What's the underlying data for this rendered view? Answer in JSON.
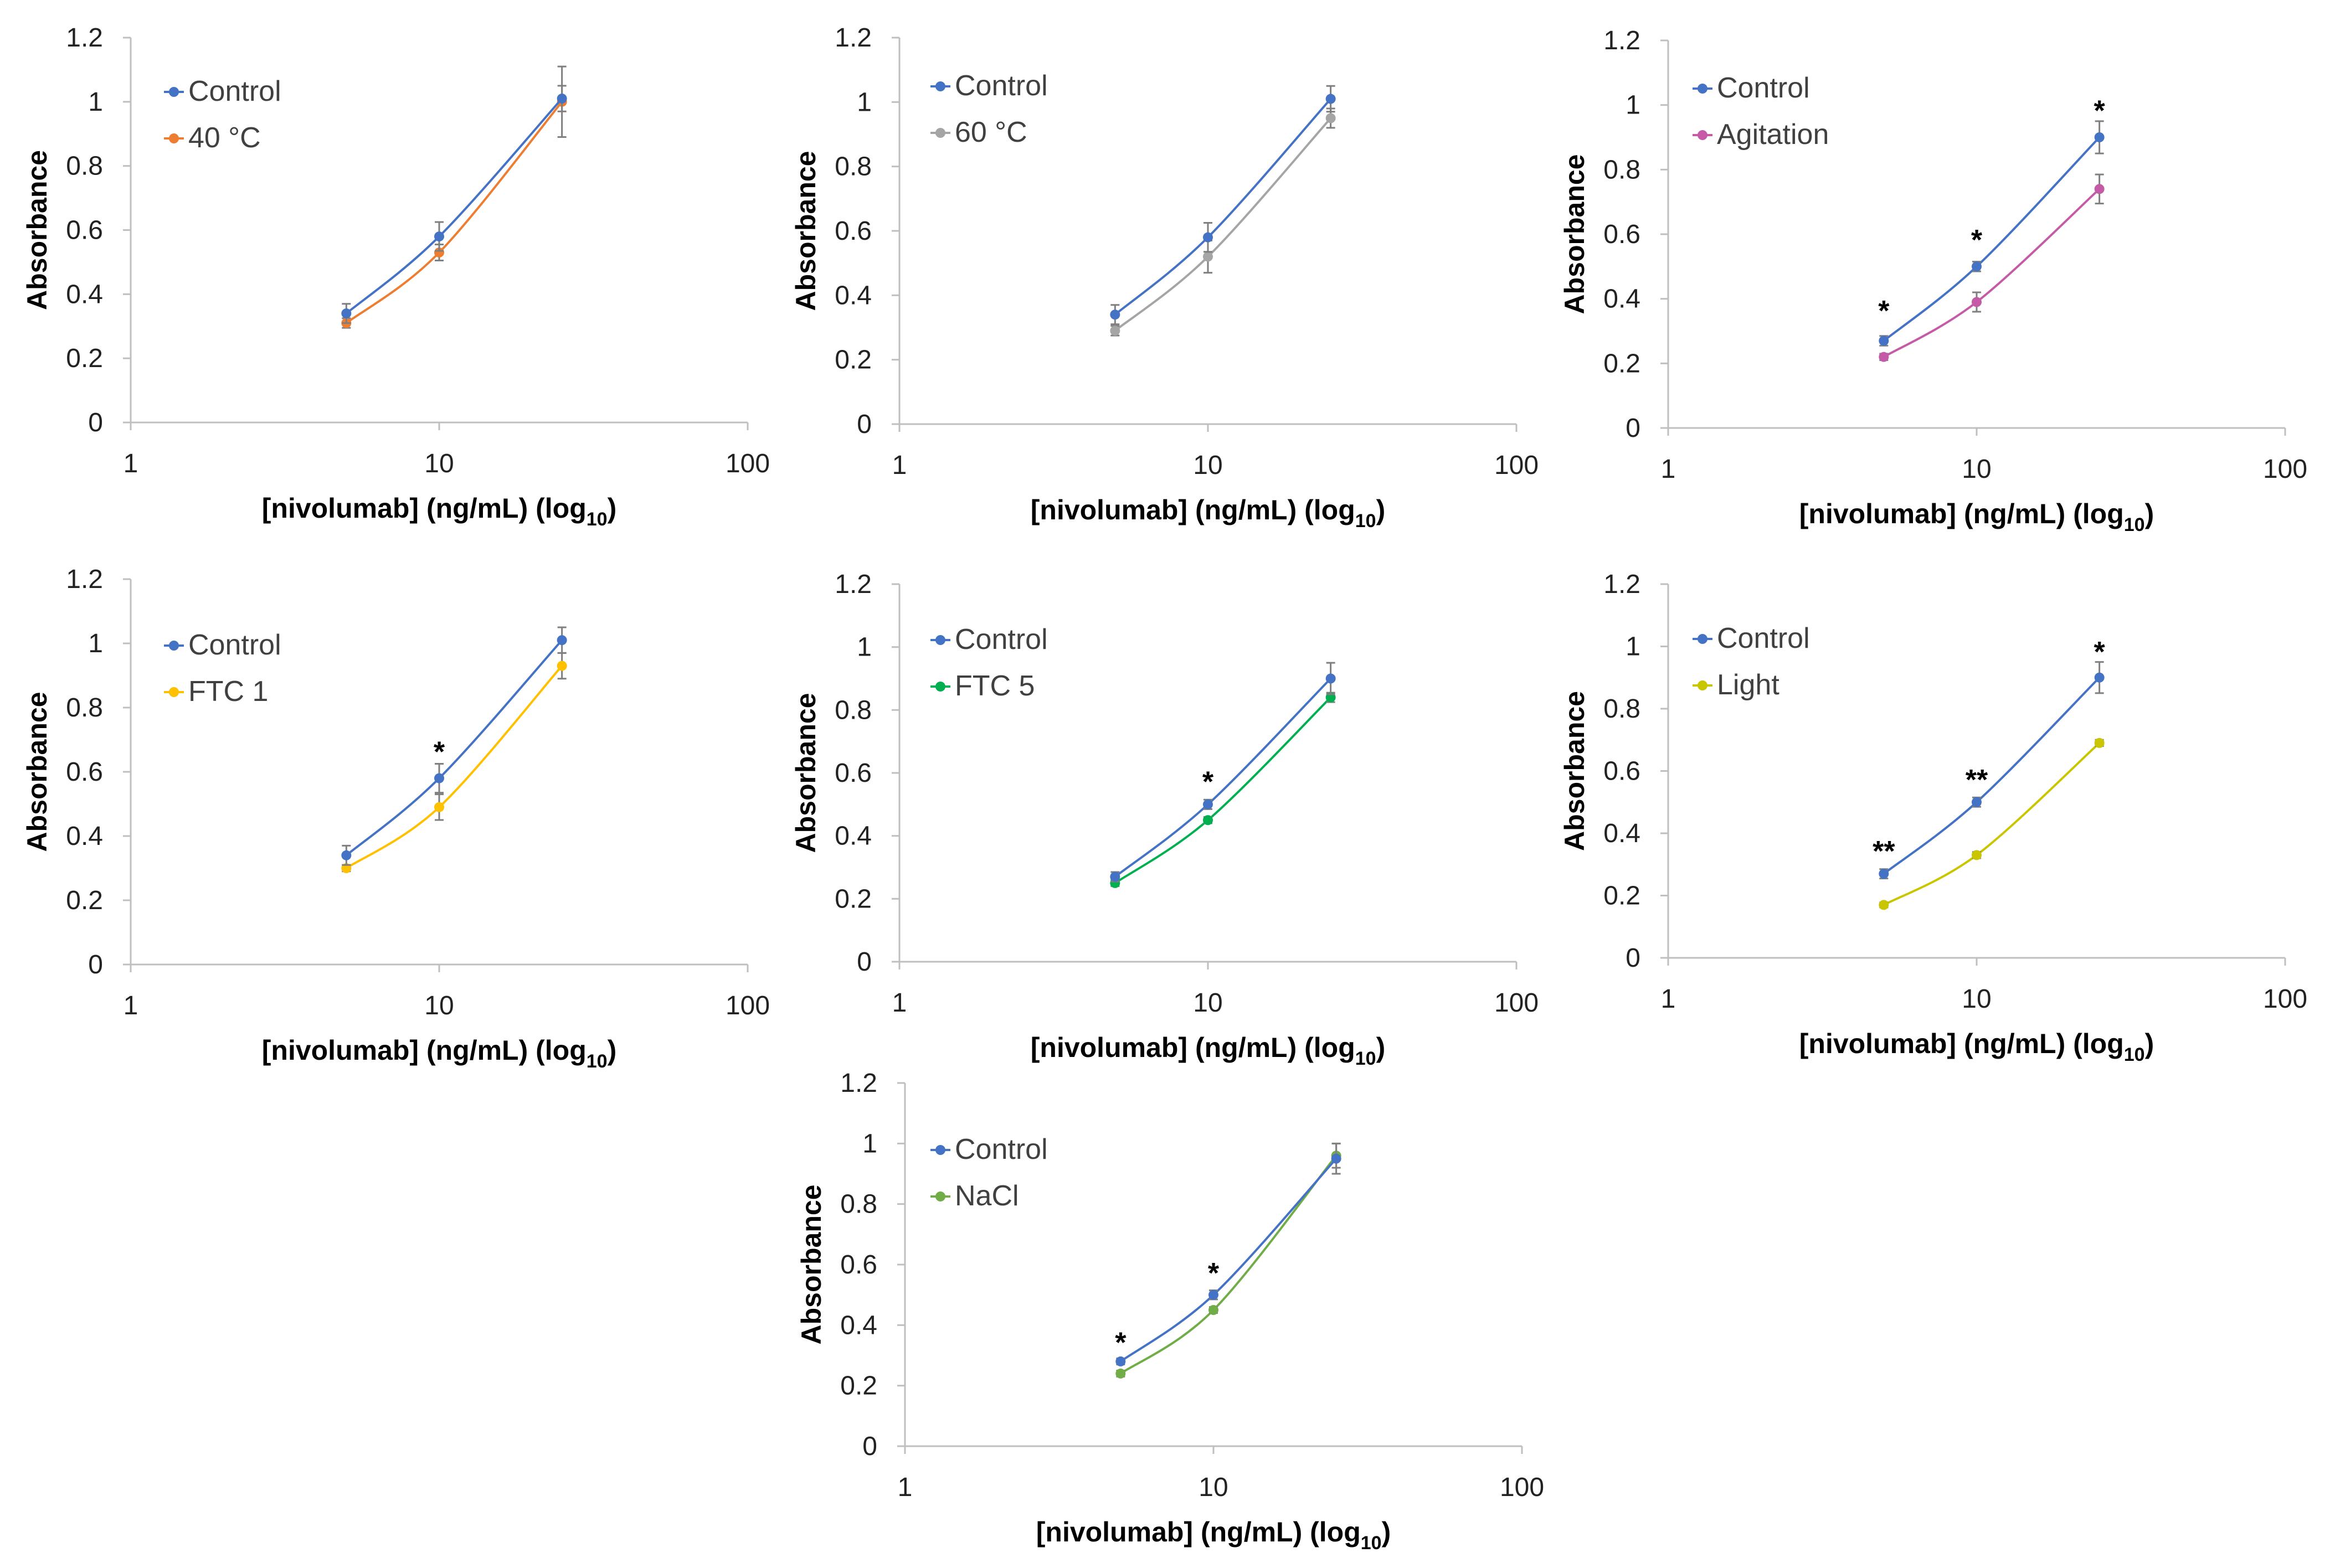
{
  "chart_data": [
    {
      "type": "line",
      "xscale": "log",
      "xlim": [
        1,
        100
      ],
      "ylim": [
        0,
        1.2
      ],
      "xticks": [
        "1",
        "10",
        "100"
      ],
      "yticks": [
        "0",
        "0.2",
        "0.4",
        "0.6",
        "0.8",
        "1",
        "1.2"
      ],
      "xlabel": "[nivolumab] (ng/mL) (log",
      "xlabel_sub": "10",
      "xlabel_end": ")",
      "ylabel": "Absorbance",
      "x": [
        5,
        10,
        25
      ],
      "series": [
        {
          "name": "Control",
          "color": "#4472C4",
          "values": [
            0.34,
            0.58,
            1.01
          ],
          "errors": [
            0.03,
            0.045,
            0.04
          ]
        },
        {
          "name": "40 °C",
          "color": "#ED7D31",
          "values": [
            0.31,
            0.53,
            1.0
          ],
          "errors": [
            0.015,
            0.025,
            0.11
          ]
        }
      ],
      "significance": []
    },
    {
      "type": "line",
      "xscale": "log",
      "xlim": [
        1,
        100
      ],
      "ylim": [
        0,
        1.2
      ],
      "xticks": [
        "1",
        "10",
        "100"
      ],
      "yticks": [
        "0",
        "0.2",
        "0.4",
        "0.6",
        "0.8",
        "1",
        "1.2"
      ],
      "xlabel": "[nivolumab] (ng/mL) (log",
      "xlabel_sub": "10",
      "xlabel_end": ")",
      "ylabel": "Absorbance",
      "x": [
        5,
        10,
        25
      ],
      "series": [
        {
          "name": "Control",
          "color": "#4472C4",
          "values": [
            0.34,
            0.58,
            1.01
          ],
          "errors": [
            0.03,
            0.045,
            0.04
          ]
        },
        {
          "name": "60 °C",
          "color": "#A5A5A5",
          "values": [
            0.29,
            0.52,
            0.95
          ],
          "errors": [
            0.015,
            0.05,
            0.03
          ]
        }
      ],
      "significance": []
    },
    {
      "type": "line",
      "xscale": "log",
      "xlim": [
        1,
        100
      ],
      "ylim": [
        0,
        1.2
      ],
      "xticks": [
        "1",
        "10",
        "100"
      ],
      "yticks": [
        "0",
        "0.2",
        "0.4",
        "0.6",
        "0.8",
        "1",
        "1.2"
      ],
      "xlabel": "[nivolumab] (ng/mL) (log",
      "xlabel_sub": "10",
      "xlabel_end": ")",
      "ylabel": "Absorbance",
      "x": [
        5,
        10,
        25
      ],
      "series": [
        {
          "name": "Control",
          "color": "#4472C4",
          "values": [
            0.27,
            0.5,
            0.9
          ],
          "errors": [
            0.015,
            0.015,
            0.05
          ]
        },
        {
          "name": "Agitation",
          "color": "#C55BA6",
          "values": [
            0.22,
            0.39,
            0.74
          ],
          "errors": [
            0.01,
            0.03,
            0.045
          ]
        }
      ],
      "significance": [
        {
          "x": 5,
          "y": 0.37,
          "text": "*"
        },
        {
          "x": 10,
          "y": 0.59,
          "text": "*"
        },
        {
          "x": 25,
          "y": 0.99,
          "text": "*"
        }
      ]
    },
    {
      "type": "line",
      "xscale": "log",
      "xlim": [
        1,
        100
      ],
      "ylim": [
        0,
        1.2
      ],
      "xticks": [
        "1",
        "10",
        "100"
      ],
      "yticks": [
        "0",
        "0.2",
        "0.4",
        "0.6",
        "0.8",
        "1",
        "1.2"
      ],
      "xlabel": "[nivolumab] (ng/mL) (log",
      "xlabel_sub": "10",
      "xlabel_end": ")",
      "ylabel": "Absorbance",
      "x": [
        5,
        10,
        25
      ],
      "series": [
        {
          "name": "Control",
          "color": "#4472C4",
          "values": [
            0.34,
            0.58,
            1.01
          ],
          "errors": [
            0.03,
            0.045,
            0.04
          ]
        },
        {
          "name": "FTC 1",
          "color": "#FFC000",
          "values": [
            0.3,
            0.49,
            0.93
          ],
          "errors": [
            0.01,
            0.04,
            0.04
          ]
        }
      ],
      "significance": [
        {
          "x": 10,
          "y": 0.67,
          "text": "*"
        }
      ]
    },
    {
      "type": "line",
      "xscale": "log",
      "xlim": [
        1,
        100
      ],
      "ylim": [
        0,
        1.2
      ],
      "xticks": [
        "1",
        "10",
        "100"
      ],
      "yticks": [
        "0",
        "0.2",
        "0.4",
        "0.6",
        "0.8",
        "1",
        "1.2"
      ],
      "xlabel": "[nivolumab] (ng/mL) (log",
      "xlabel_sub": "10",
      "xlabel_end": ")",
      "ylabel": "Absorbance",
      "x": [
        5,
        10,
        25
      ],
      "series": [
        {
          "name": "Control",
          "color": "#4472C4",
          "values": [
            0.27,
            0.5,
            0.9
          ],
          "errors": [
            0.015,
            0.015,
            0.05
          ]
        },
        {
          "name": "FTC 5",
          "color": "#00B050",
          "values": [
            0.25,
            0.45,
            0.84
          ],
          "errors": [
            0.01,
            0.01,
            0.015
          ]
        }
      ],
      "significance": [
        {
          "x": 10,
          "y": 0.58,
          "text": "*"
        }
      ]
    },
    {
      "type": "line",
      "xscale": "log",
      "xlim": [
        1,
        100
      ],
      "ylim": [
        0,
        1.2
      ],
      "xticks": [
        "1",
        "10",
        "100"
      ],
      "yticks": [
        "0",
        "0.2",
        "0.4",
        "0.6",
        "0.8",
        "1",
        "1.2"
      ],
      "xlabel": "[nivolumab] (ng/mL) (log",
      "xlabel_sub": "10",
      "xlabel_end": ")",
      "ylabel": "Absorbance",
      "x": [
        5,
        10,
        25
      ],
      "series": [
        {
          "name": "Control",
          "color": "#4472C4",
          "values": [
            0.27,
            0.5,
            0.9
          ],
          "errors": [
            0.015,
            0.015,
            0.05
          ]
        },
        {
          "name": "Light",
          "color": "#C9C600",
          "values": [
            0.17,
            0.33,
            0.69
          ],
          "errors": [
            0.008,
            0.01,
            0.01
          ]
        }
      ],
      "significance": [
        {
          "x": 5,
          "y": 0.35,
          "text": "**"
        },
        {
          "x": 10,
          "y": 0.58,
          "text": "**"
        },
        {
          "x": 25,
          "y": 0.99,
          "text": "*"
        }
      ]
    },
    {
      "type": "line",
      "xscale": "log",
      "xlim": [
        1,
        100
      ],
      "ylim": [
        0,
        1.2
      ],
      "xticks": [
        "1",
        "10",
        "100"
      ],
      "yticks": [
        "0",
        "0.2",
        "0.4",
        "0.6",
        "0.8",
        "1",
        "1.2"
      ],
      "xlabel": "[nivolumab] (ng/mL) (log",
      "xlabel_sub": "10",
      "xlabel_end": ")",
      "ylabel": "Absorbance",
      "x": [
        5,
        10,
        25
      ],
      "series": [
        {
          "name": "Control",
          "color": "#4472C4",
          "values": [
            0.28,
            0.5,
            0.95
          ],
          "errors": [
            0.01,
            0.015,
            0.05
          ]
        },
        {
          "name": "NaCl",
          "color": "#70AD47",
          "values": [
            0.24,
            0.45,
            0.96
          ],
          "errors": [
            0.01,
            0.01,
            0.04
          ]
        }
      ],
      "significance": [
        {
          "x": 5,
          "y": 0.35,
          "text": "*"
        },
        {
          "x": 10,
          "y": 0.58,
          "text": "*"
        }
      ]
    }
  ]
}
